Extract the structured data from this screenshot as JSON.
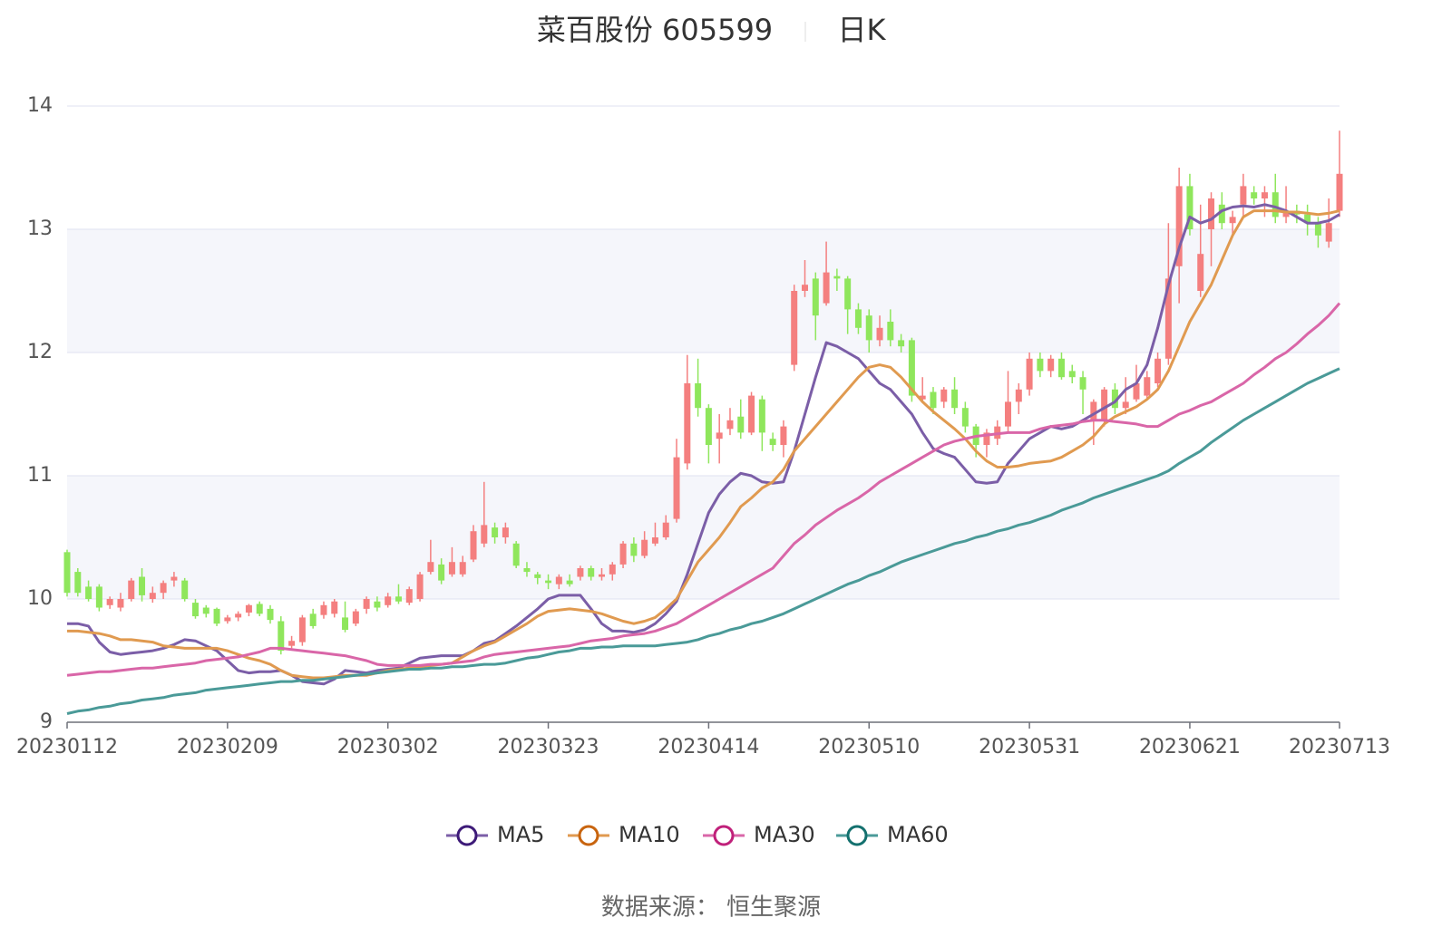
{
  "chart_data": {
    "type": "candlestick",
    "title": "菜百股份 605599",
    "period": "日K",
    "source": "数据来源： 恒生聚源",
    "up_color": "#f47f7f",
    "down_color": "#8fe65c",
    "ylim": [
      9,
      14
    ],
    "yticks": [
      9,
      10,
      11,
      12,
      13,
      14
    ],
    "grid": true,
    "categories": [
      "20230112",
      null,
      null,
      null,
      null,
      null,
      null,
      null,
      null,
      null,
      null,
      null,
      null,
      null,
      null,
      "20230209",
      null,
      null,
      null,
      null,
      null,
      null,
      null,
      null,
      null,
      null,
      null,
      null,
      null,
      null,
      "20230302",
      null,
      null,
      null,
      null,
      null,
      null,
      null,
      null,
      null,
      null,
      null,
      null,
      null,
      null,
      "20230323",
      null,
      null,
      null,
      null,
      null,
      null,
      null,
      null,
      null,
      null,
      null,
      null,
      null,
      null,
      "20230414",
      null,
      null,
      null,
      null,
      null,
      null,
      null,
      null,
      null,
      null,
      null,
      null,
      null,
      null,
      "20230510",
      null,
      null,
      null,
      null,
      null,
      null,
      null,
      null,
      null,
      null,
      null,
      null,
      null,
      null,
      "20230531",
      null,
      null,
      null,
      null,
      null,
      null,
      null,
      null,
      null,
      null,
      null,
      null,
      null,
      null,
      "20230621",
      null,
      null,
      null,
      null,
      null,
      null,
      null,
      null,
      null,
      null,
      null,
      null,
      null,
      "20230713"
    ],
    "ohlc": [
      [
        10.38,
        10.4,
        10.02,
        10.05
      ],
      [
        10.22,
        10.25,
        10.02,
        10.05
      ],
      [
        10.1,
        10.15,
        9.98,
        10.0
      ],
      [
        10.1,
        10.12,
        9.9,
        9.93
      ],
      [
        9.95,
        10.02,
        9.92,
        10.0
      ],
      [
        9.93,
        10.05,
        9.9,
        10.0
      ],
      [
        10.0,
        10.17,
        9.98,
        10.15
      ],
      [
        10.18,
        10.25,
        9.98,
        10.03
      ],
      [
        10.0,
        10.1,
        9.97,
        10.05
      ],
      [
        10.05,
        10.15,
        10.0,
        10.13
      ],
      [
        10.15,
        10.22,
        10.1,
        10.18
      ],
      [
        10.15,
        10.17,
        9.98,
        10.0
      ],
      [
        9.97,
        10.0,
        9.84,
        9.86
      ],
      [
        9.93,
        9.95,
        9.85,
        9.88
      ],
      [
        9.92,
        9.93,
        9.78,
        9.8
      ],
      [
        9.82,
        9.87,
        9.8,
        9.85
      ],
      [
        9.85,
        9.9,
        9.82,
        9.88
      ],
      [
        9.89,
        9.96,
        9.86,
        9.95
      ],
      [
        9.96,
        9.98,
        9.86,
        9.88
      ],
      [
        9.92,
        9.95,
        9.8,
        9.83
      ],
      [
        9.82,
        9.86,
        9.55,
        9.58
      ],
      [
        9.62,
        9.7,
        9.6,
        9.66
      ],
      [
        9.65,
        9.87,
        9.62,
        9.85
      ],
      [
        9.88,
        9.92,
        9.76,
        9.78
      ],
      [
        9.87,
        9.98,
        9.84,
        9.95
      ],
      [
        9.88,
        10.0,
        9.85,
        9.98
      ],
      [
        9.85,
        9.98,
        9.73,
        9.75
      ],
      [
        9.8,
        9.92,
        9.78,
        9.9
      ],
      [
        9.92,
        10.02,
        9.88,
        10.0
      ],
      [
        9.98,
        10.02,
        9.9,
        9.93
      ],
      [
        9.95,
        10.05,
        9.93,
        10.02
      ],
      [
        10.02,
        10.12,
        9.96,
        9.98
      ],
      [
        9.97,
        10.1,
        9.95,
        10.08
      ],
      [
        10.0,
        10.22,
        9.98,
        10.2
      ],
      [
        10.22,
        10.48,
        10.2,
        10.3
      ],
      [
        10.28,
        10.33,
        10.12,
        10.15
      ],
      [
        10.2,
        10.42,
        10.18,
        10.3
      ],
      [
        10.2,
        10.35,
        10.18,
        10.3
      ],
      [
        10.32,
        10.6,
        10.3,
        10.55
      ],
      [
        10.45,
        10.95,
        10.42,
        10.6
      ],
      [
        10.58,
        10.62,
        10.45,
        10.5
      ],
      [
        10.5,
        10.62,
        10.45,
        10.58
      ],
      [
        10.45,
        10.47,
        10.25,
        10.27
      ],
      [
        10.25,
        10.3,
        10.18,
        10.22
      ],
      [
        10.2,
        10.22,
        10.12,
        10.17
      ],
      [
        10.15,
        10.2,
        10.08,
        10.13
      ],
      [
        10.12,
        10.2,
        10.08,
        10.18
      ],
      [
        10.15,
        10.2,
        10.1,
        10.12
      ],
      [
        10.18,
        10.27,
        10.15,
        10.25
      ],
      [
        10.25,
        10.27,
        10.15,
        10.18
      ],
      [
        10.18,
        10.25,
        10.15,
        10.2
      ],
      [
        10.2,
        10.3,
        10.15,
        10.28
      ],
      [
        10.28,
        10.47,
        10.25,
        10.45
      ],
      [
        10.45,
        10.5,
        10.3,
        10.35
      ],
      [
        10.35,
        10.55,
        10.33,
        10.48
      ],
      [
        10.45,
        10.62,
        10.43,
        10.5
      ],
      [
        10.5,
        10.68,
        10.48,
        10.62
      ],
      [
        10.65,
        11.3,
        10.62,
        11.15
      ],
      [
        11.1,
        11.98,
        11.05,
        11.75
      ],
      [
        11.75,
        11.95,
        11.48,
        11.55
      ],
      [
        11.55,
        11.58,
        11.1,
        11.25
      ],
      [
        11.3,
        11.5,
        11.1,
        11.35
      ],
      [
        11.38,
        11.55,
        11.33,
        11.45
      ],
      [
        11.48,
        11.62,
        11.3,
        11.35
      ],
      [
        11.35,
        11.68,
        11.33,
        11.65
      ],
      [
        11.62,
        11.65,
        11.2,
        11.35
      ],
      [
        11.3,
        11.35,
        11.2,
        11.25
      ],
      [
        11.25,
        11.45,
        11.15,
        11.4
      ],
      [
        11.9,
        12.55,
        11.85,
        12.5
      ],
      [
        12.5,
        12.75,
        12.45,
        12.55
      ],
      [
        12.6,
        12.65,
        12.1,
        12.3
      ],
      [
        12.4,
        12.9,
        12.38,
        12.65
      ],
      [
        12.62,
        12.68,
        12.5,
        12.6
      ],
      [
        12.6,
        12.62,
        12.15,
        12.35
      ],
      [
        12.35,
        12.4,
        12.15,
        12.2
      ],
      [
        12.3,
        12.35,
        12.0,
        12.1
      ],
      [
        12.1,
        12.3,
        12.05,
        12.2
      ],
      [
        12.25,
        12.35,
        12.05,
        12.1
      ],
      [
        12.1,
        12.15,
        12.0,
        12.05
      ],
      [
        12.1,
        12.12,
        11.6,
        11.65
      ],
      [
        11.62,
        11.8,
        11.6,
        11.65
      ],
      [
        11.68,
        11.72,
        11.5,
        11.55
      ],
      [
        11.6,
        11.72,
        11.55,
        11.7
      ],
      [
        11.7,
        11.8,
        11.5,
        11.55
      ],
      [
        11.55,
        11.6,
        11.35,
        11.4
      ],
      [
        11.4,
        11.42,
        11.15,
        11.25
      ],
      [
        11.25,
        11.38,
        11.15,
        11.35
      ],
      [
        11.3,
        11.45,
        11.25,
        11.4
      ],
      [
        11.4,
        11.85,
        11.35,
        11.6
      ],
      [
        11.6,
        11.75,
        11.5,
        11.7
      ],
      [
        11.7,
        12.0,
        11.65,
        11.95
      ],
      [
        11.95,
        12.0,
        11.8,
        11.85
      ],
      [
        11.85,
        11.98,
        11.8,
        11.95
      ],
      [
        11.95,
        12.0,
        11.78,
        11.8
      ],
      [
        11.85,
        11.9,
        11.75,
        11.8
      ],
      [
        11.8,
        11.85,
        11.5,
        11.7
      ],
      [
        11.45,
        11.62,
        11.25,
        11.6
      ],
      [
        11.45,
        11.72,
        11.4,
        11.7
      ],
      [
        11.7,
        11.75,
        11.5,
        11.55
      ],
      [
        11.55,
        11.8,
        11.5,
        11.6
      ],
      [
        11.62,
        11.9,
        11.6,
        11.75
      ],
      [
        11.65,
        11.85,
        11.62,
        11.8
      ],
      [
        11.75,
        12.0,
        11.72,
        11.95
      ],
      [
        11.95,
        13.05,
        11.9,
        12.6
      ],
      [
        12.7,
        13.5,
        12.4,
        13.35
      ],
      [
        13.35,
        13.45,
        12.95,
        13.0
      ],
      [
        12.5,
        13.2,
        12.45,
        12.8
      ],
      [
        13.0,
        13.3,
        12.7,
        13.25
      ],
      [
        13.2,
        13.3,
        13.0,
        13.05
      ],
      [
        13.05,
        13.15,
        12.95,
        13.1
      ],
      [
        13.2,
        13.45,
        13.1,
        13.35
      ],
      [
        13.3,
        13.35,
        13.2,
        13.25
      ],
      [
        13.25,
        13.35,
        13.1,
        13.3
      ],
      [
        13.3,
        13.45,
        13.05,
        13.1
      ],
      [
        13.1,
        13.35,
        13.05,
        13.15
      ],
      [
        13.15,
        13.2,
        13.05,
        13.12
      ],
      [
        13.12,
        13.2,
        12.95,
        13.05
      ],
      [
        13.05,
        13.1,
        12.85,
        12.95
      ],
      [
        12.9,
        13.25,
        12.85,
        13.05
      ],
      [
        13.15,
        13.8,
        13.1,
        13.45
      ]
    ],
    "series": [
      {
        "name": "MA5",
        "color": "#7b5ea7",
        "ring": "#3d1a78",
        "values": [
          9.8,
          9.8,
          9.78,
          9.65,
          9.57,
          9.55,
          9.56,
          9.57,
          9.58,
          9.6,
          9.63,
          9.67,
          9.66,
          9.62,
          9.58,
          9.5,
          9.42,
          9.4,
          9.41,
          9.41,
          9.42,
          9.38,
          9.33,
          9.32,
          9.31,
          9.35,
          9.42,
          9.41,
          9.4,
          9.42,
          9.43,
          9.44,
          9.48,
          9.52,
          9.53,
          9.54,
          9.54,
          9.54,
          9.58,
          9.64,
          9.66,
          9.72,
          9.78,
          9.85,
          9.92,
          10.0,
          10.03,
          10.03,
          10.03,
          9.92,
          9.8,
          9.74,
          9.74,
          9.73,
          9.75,
          9.8,
          9.88,
          9.98,
          10.2,
          10.45,
          10.7,
          10.85,
          10.95,
          11.02,
          11.0,
          10.95,
          10.94,
          10.95,
          11.2,
          11.5,
          11.8,
          12.08,
          12.05,
          12.0,
          11.95,
          11.85,
          11.75,
          11.7,
          11.6,
          11.5,
          11.35,
          11.22,
          11.18,
          11.15,
          11.05,
          10.95,
          10.94,
          10.95,
          11.1,
          11.2,
          11.3,
          11.35,
          11.4,
          11.38,
          11.4,
          11.45,
          11.5,
          11.55,
          11.6,
          11.7,
          11.75,
          11.9,
          12.2,
          12.55,
          12.85,
          13.1,
          13.05,
          13.08,
          13.15,
          13.18,
          13.19,
          13.18,
          13.2,
          13.18,
          13.15,
          13.1,
          13.05,
          13.05,
          13.07,
          13.12
        ]
      },
      {
        "name": "MA10",
        "color": "#e09a50",
        "ring": "#c8640e",
        "values": [
          9.74,
          9.74,
          9.73,
          9.72,
          9.7,
          9.67,
          9.67,
          9.66,
          9.65,
          9.62,
          9.61,
          9.6,
          9.6,
          9.6,
          9.6,
          9.58,
          9.55,
          9.52,
          9.5,
          9.47,
          9.42,
          9.38,
          9.37,
          9.36,
          9.36,
          9.37,
          9.38,
          9.38,
          9.38,
          9.4,
          9.42,
          9.43,
          9.44,
          9.45,
          9.46,
          9.47,
          9.48,
          9.53,
          9.58,
          9.62,
          9.65,
          9.7,
          9.75,
          9.8,
          9.86,
          9.9,
          9.91,
          9.92,
          9.91,
          9.9,
          9.88,
          9.85,
          9.82,
          9.8,
          9.82,
          9.85,
          9.92,
          10.0,
          10.15,
          10.3,
          10.4,
          10.5,
          10.62,
          10.75,
          10.82,
          10.9,
          10.95,
          11.05,
          11.2,
          11.3,
          11.4,
          11.5,
          11.6,
          11.7,
          11.8,
          11.88,
          11.9,
          11.88,
          11.8,
          11.7,
          11.6,
          11.52,
          11.45,
          11.38,
          11.3,
          11.2,
          11.12,
          11.07,
          11.07,
          11.08,
          11.1,
          11.11,
          11.12,
          11.15,
          11.2,
          11.25,
          11.32,
          11.42,
          11.48,
          11.52,
          11.56,
          11.62,
          11.7,
          11.85,
          12.05,
          12.25,
          12.4,
          12.55,
          12.75,
          12.95,
          13.1,
          13.15,
          13.15,
          13.15,
          13.14,
          13.14,
          13.13,
          13.12,
          13.13,
          13.15
        ]
      },
      {
        "name": "MA30",
        "color": "#d966a8",
        "ring": "#c0207a",
        "values": [
          9.38,
          9.39,
          9.4,
          9.41,
          9.41,
          9.42,
          9.43,
          9.44,
          9.44,
          9.45,
          9.46,
          9.47,
          9.48,
          9.5,
          9.51,
          9.52,
          9.53,
          9.55,
          9.57,
          9.6,
          9.6,
          9.59,
          9.58,
          9.57,
          9.56,
          9.55,
          9.54,
          9.52,
          9.5,
          9.47,
          9.46,
          9.46,
          9.46,
          9.46,
          9.47,
          9.47,
          9.48,
          9.49,
          9.5,
          9.53,
          9.55,
          9.56,
          9.57,
          9.58,
          9.59,
          9.6,
          9.61,
          9.62,
          9.64,
          9.66,
          9.67,
          9.68,
          9.7,
          9.71,
          9.72,
          9.74,
          9.77,
          9.8,
          9.85,
          9.9,
          9.95,
          10.0,
          10.05,
          10.1,
          10.15,
          10.2,
          10.25,
          10.35,
          10.45,
          10.52,
          10.6,
          10.66,
          10.72,
          10.77,
          10.82,
          10.88,
          10.95,
          11.0,
          11.05,
          11.1,
          11.15,
          11.2,
          11.25,
          11.28,
          11.3,
          11.32,
          11.33,
          11.34,
          11.35,
          11.35,
          11.35,
          11.38,
          11.4,
          11.41,
          11.42,
          11.44,
          11.45,
          11.45,
          11.44,
          11.43,
          11.42,
          11.4,
          11.4,
          11.45,
          11.5,
          11.53,
          11.57,
          11.6,
          11.65,
          11.7,
          11.75,
          11.82,
          11.88,
          11.95,
          12.0,
          12.07,
          12.15,
          12.22,
          12.3,
          12.4
        ]
      },
      {
        "name": "MA60",
        "color": "#4a9a98",
        "ring": "#13706e",
        "values": [
          9.07,
          9.09,
          9.1,
          9.12,
          9.13,
          9.15,
          9.16,
          9.18,
          9.19,
          9.2,
          9.22,
          9.23,
          9.24,
          9.26,
          9.27,
          9.28,
          9.29,
          9.3,
          9.31,
          9.32,
          9.33,
          9.33,
          9.34,
          9.34,
          9.35,
          9.36,
          9.37,
          9.38,
          9.39,
          9.4,
          9.41,
          9.42,
          9.43,
          9.43,
          9.44,
          9.44,
          9.45,
          9.45,
          9.46,
          9.47,
          9.47,
          9.48,
          9.5,
          9.52,
          9.53,
          9.55,
          9.57,
          9.58,
          9.6,
          9.6,
          9.61,
          9.61,
          9.62,
          9.62,
          9.62,
          9.62,
          9.63,
          9.64,
          9.65,
          9.67,
          9.7,
          9.72,
          9.75,
          9.77,
          9.8,
          9.82,
          9.85,
          9.88,
          9.92,
          9.96,
          10.0,
          10.04,
          10.08,
          10.12,
          10.15,
          10.19,
          10.22,
          10.26,
          10.3,
          10.33,
          10.36,
          10.39,
          10.42,
          10.45,
          10.47,
          10.5,
          10.52,
          10.55,
          10.57,
          10.6,
          10.62,
          10.65,
          10.68,
          10.72,
          10.75,
          10.78,
          10.82,
          10.85,
          10.88,
          10.91,
          10.94,
          10.97,
          11.0,
          11.04,
          11.1,
          11.15,
          11.2,
          11.27,
          11.33,
          11.39,
          11.45,
          11.5,
          11.55,
          11.6,
          11.65,
          11.7,
          11.75,
          11.79,
          11.83,
          11.87
        ]
      }
    ]
  }
}
